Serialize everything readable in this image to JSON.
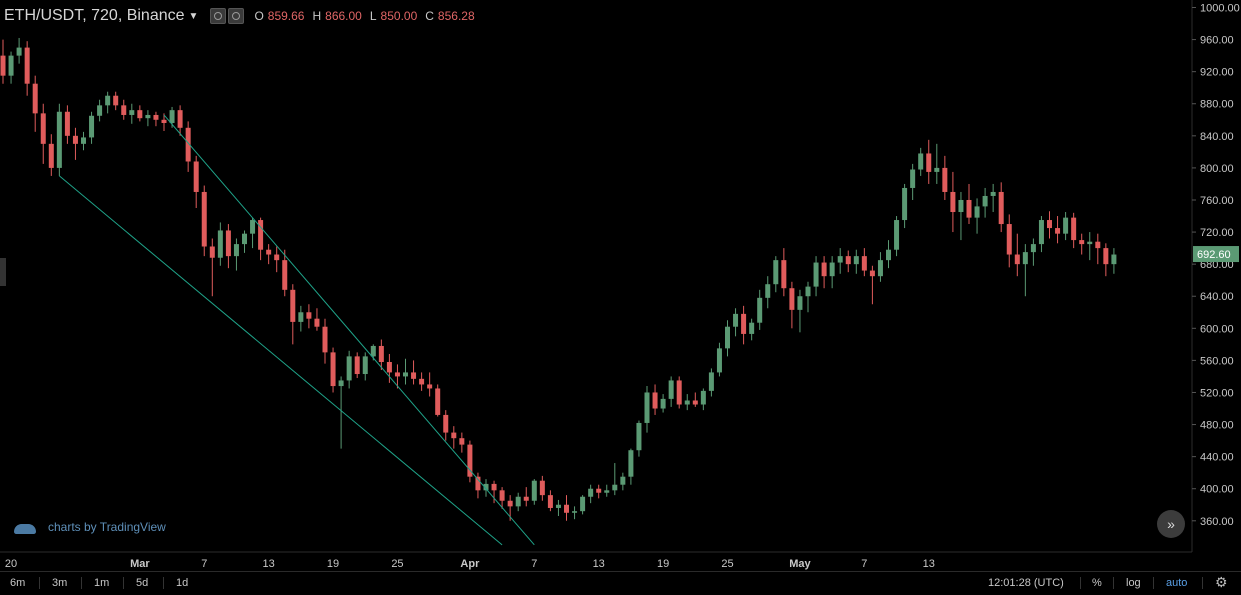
{
  "header": {
    "symbol": "ETH/USDT, 720, Binance",
    "ohlc": [
      {
        "label": "O",
        "value": "859.66"
      },
      {
        "label": "H",
        "value": "866.00"
      },
      {
        "label": "L",
        "value": "850.00"
      },
      {
        "label": "C",
        "value": "856.28"
      }
    ]
  },
  "brand": "charts by TradingView",
  "timeframes": [
    "6m",
    "3m",
    "1m",
    "5d",
    "1d"
  ],
  "clock": "12:01:28 (UTC)",
  "options": {
    "percent": "%",
    "log": "log",
    "auto": "auto"
  },
  "colors": {
    "up": "#5b9a74",
    "down": "#e05c5c",
    "trendline": "#1fa389",
    "axis_text": "#c8c8c8",
    "price_tag_bg": "#5b9a74"
  },
  "chart_data": {
    "type": "candlestick",
    "last_price": "692.60",
    "y_ticks": [
      "360.00",
      "400.00",
      "440.00",
      "480.00",
      "520.00",
      "560.00",
      "600.00",
      "640.00",
      "680.00",
      "720.00",
      "760.00",
      "800.00",
      "840.00",
      "880.00",
      "920.00",
      "960.00",
      "1000.00"
    ],
    "x_ticks": [
      {
        "label": "20",
        "bar": 1
      },
      {
        "label": "Mar",
        "bar": 17
      },
      {
        "label": "7",
        "bar": 25
      },
      {
        "label": "13",
        "bar": 33
      },
      {
        "label": "19",
        "bar": 41
      },
      {
        "label": "25",
        "bar": 49
      },
      {
        "label": "Apr",
        "bar": 58
      },
      {
        "label": "7",
        "bar": 66
      },
      {
        "label": "13",
        "bar": 74
      },
      {
        "label": "19",
        "bar": 82
      },
      {
        "label": "25",
        "bar": 90
      },
      {
        "label": "May",
        "bar": 99
      },
      {
        "label": "7",
        "bar": 107
      },
      {
        "label": "13",
        "bar": 115
      }
    ],
    "ohlc": [
      [
        940,
        960,
        905,
        915
      ],
      [
        915,
        945,
        905,
        940
      ],
      [
        940,
        962,
        930,
        950
      ],
      [
        950,
        958,
        890,
        905
      ],
      [
        905,
        915,
        845,
        868
      ],
      [
        868,
        880,
        805,
        830
      ],
      [
        830,
        842,
        790,
        800
      ],
      [
        800,
        880,
        790,
        870
      ],
      [
        870,
        878,
        830,
        840
      ],
      [
        840,
        850,
        810,
        830
      ],
      [
        830,
        845,
        822,
        838
      ],
      [
        838,
        870,
        830,
        865
      ],
      [
        865,
        885,
        858,
        878
      ],
      [
        878,
        895,
        868,
        890
      ],
      [
        890,
        895,
        872,
        878
      ],
      [
        878,
        885,
        860,
        866
      ],
      [
        866,
        880,
        855,
        872
      ],
      [
        872,
        878,
        858,
        862
      ],
      [
        862,
        872,
        852,
        866
      ],
      [
        866,
        870,
        852,
        860
      ],
      [
        860,
        868,
        846,
        856
      ],
      [
        856,
        876,
        850,
        872
      ],
      [
        872,
        878,
        840,
        850
      ],
      [
        850,
        858,
        795,
        808
      ],
      [
        808,
        815,
        750,
        770
      ],
      [
        770,
        778,
        690,
        702
      ],
      [
        702,
        712,
        640,
        688
      ],
      [
        688,
        732,
        678,
        722
      ],
      [
        722,
        730,
        675,
        690
      ],
      [
        690,
        712,
        672,
        705
      ],
      [
        705,
        722,
        694,
        718
      ],
      [
        718,
        738,
        700,
        735
      ],
      [
        735,
        738,
        685,
        698
      ],
      [
        698,
        705,
        680,
        692
      ],
      [
        692,
        702,
        670,
        685
      ],
      [
        685,
        698,
        640,
        648
      ],
      [
        648,
        655,
        580,
        608
      ],
      [
        608,
        628,
        596,
        620
      ],
      [
        620,
        630,
        600,
        612
      ],
      [
        612,
        625,
        597,
        602
      ],
      [
        602,
        612,
        556,
        570
      ],
      [
        570,
        576,
        520,
        528
      ],
      [
        528,
        540,
        450,
        535
      ],
      [
        535,
        572,
        525,
        565
      ],
      [
        565,
        570,
        538,
        543
      ],
      [
        543,
        570,
        535,
        565
      ],
      [
        565,
        580,
        560,
        578
      ],
      [
        578,
        586,
        548,
        558
      ],
      [
        558,
        568,
        532,
        545
      ],
      [
        545,
        555,
        525,
        540
      ],
      [
        540,
        562,
        530,
        545
      ],
      [
        545,
        560,
        530,
        537
      ],
      [
        537,
        545,
        522,
        530
      ],
      [
        530,
        545,
        515,
        525
      ],
      [
        525,
        530,
        490,
        492
      ],
      [
        492,
        498,
        460,
        470
      ],
      [
        470,
        478,
        450,
        463
      ],
      [
        463,
        470,
        445,
        455
      ],
      [
        455,
        460,
        408,
        415
      ],
      [
        415,
        420,
        388,
        398
      ],
      [
        398,
        412,
        390,
        406
      ],
      [
        406,
        410,
        382,
        398
      ],
      [
        398,
        402,
        375,
        385
      ],
      [
        385,
        392,
        360,
        378
      ],
      [
        378,
        395,
        372,
        390
      ],
      [
        390,
        402,
        378,
        385
      ],
      [
        385,
        412,
        380,
        410
      ],
      [
        410,
        416,
        385,
        392
      ],
      [
        392,
        398,
        372,
        376
      ],
      [
        376,
        386,
        366,
        380
      ],
      [
        380,
        392,
        360,
        370
      ],
      [
        370,
        378,
        362,
        372
      ],
      [
        372,
        392,
        368,
        390
      ],
      [
        390,
        405,
        382,
        400
      ],
      [
        400,
        405,
        388,
        395
      ],
      [
        395,
        405,
        390,
        398
      ],
      [
        398,
        432,
        392,
        405
      ],
      [
        405,
        420,
        398,
        415
      ],
      [
        415,
        450,
        405,
        448
      ],
      [
        448,
        485,
        440,
        482
      ],
      [
        482,
        528,
        470,
        520
      ],
      [
        520,
        530,
        492,
        500
      ],
      [
        500,
        518,
        495,
        512
      ],
      [
        512,
        540,
        502,
        535
      ],
      [
        535,
        540,
        500,
        505
      ],
      [
        505,
        518,
        498,
        510
      ],
      [
        510,
        520,
        502,
        505
      ],
      [
        505,
        525,
        498,
        522
      ],
      [
        522,
        550,
        515,
        545
      ],
      [
        545,
        582,
        540,
        575
      ],
      [
        575,
        610,
        565,
        602
      ],
      [
        602,
        625,
        590,
        618
      ],
      [
        618,
        628,
        580,
        593
      ],
      [
        593,
        612,
        585,
        607
      ],
      [
        607,
        648,
        598,
        638
      ],
      [
        638,
        665,
        625,
        655
      ],
      [
        655,
        690,
        645,
        685
      ],
      [
        685,
        700,
        640,
        650
      ],
      [
        650,
        658,
        600,
        623
      ],
      [
        623,
        648,
        595,
        640
      ],
      [
        640,
        658,
        620,
        652
      ],
      [
        652,
        690,
        640,
        682
      ],
      [
        682,
        690,
        650,
        665
      ],
      [
        665,
        690,
        650,
        682
      ],
      [
        682,
        700,
        668,
        690
      ],
      [
        690,
        697,
        670,
        680
      ],
      [
        680,
        698,
        668,
        690
      ],
      [
        690,
        700,
        665,
        672
      ],
      [
        672,
        678,
        630,
        665
      ],
      [
        665,
        695,
        658,
        685
      ],
      [
        685,
        710,
        675,
        698
      ],
      [
        698,
        740,
        690,
        735
      ],
      [
        735,
        780,
        725,
        775
      ],
      [
        775,
        805,
        760,
        798
      ],
      [
        798,
        825,
        790,
        818
      ],
      [
        818,
        835,
        780,
        795
      ],
      [
        795,
        830,
        780,
        800
      ],
      [
        800,
        815,
        760,
        770
      ],
      [
        770,
        795,
        720,
        745
      ],
      [
        745,
        770,
        710,
        760
      ],
      [
        760,
        780,
        730,
        738
      ],
      [
        738,
        762,
        718,
        752
      ],
      [
        752,
        775,
        738,
        765
      ],
      [
        765,
        780,
        745,
        770
      ],
      [
        770,
        782,
        720,
        730
      ],
      [
        730,
        742,
        676,
        692
      ],
      [
        692,
        718,
        665,
        680
      ],
      [
        680,
        705,
        640,
        695
      ],
      [
        695,
        712,
        678,
        705
      ],
      [
        705,
        740,
        695,
        735
      ],
      [
        735,
        746,
        712,
        725
      ],
      [
        725,
        740,
        706,
        718
      ],
      [
        718,
        745,
        710,
        738
      ],
      [
        738,
        744,
        700,
        710
      ],
      [
        710,
        718,
        692,
        705
      ],
      [
        705,
        720,
        685,
        708
      ],
      [
        708,
        718,
        680,
        700
      ],
      [
        700,
        706,
        665,
        680
      ],
      [
        680,
        700,
        668,
        692
      ]
    ],
    "trendlines": [
      {
        "from": {
          "bar": 20,
          "price": 866
        },
        "to": {
          "bar": 66,
          "price": 330
        }
      },
      {
        "from": {
          "bar": 7,
          "price": 790
        },
        "to": {
          "bar": 62,
          "price": 330
        }
      }
    ]
  }
}
